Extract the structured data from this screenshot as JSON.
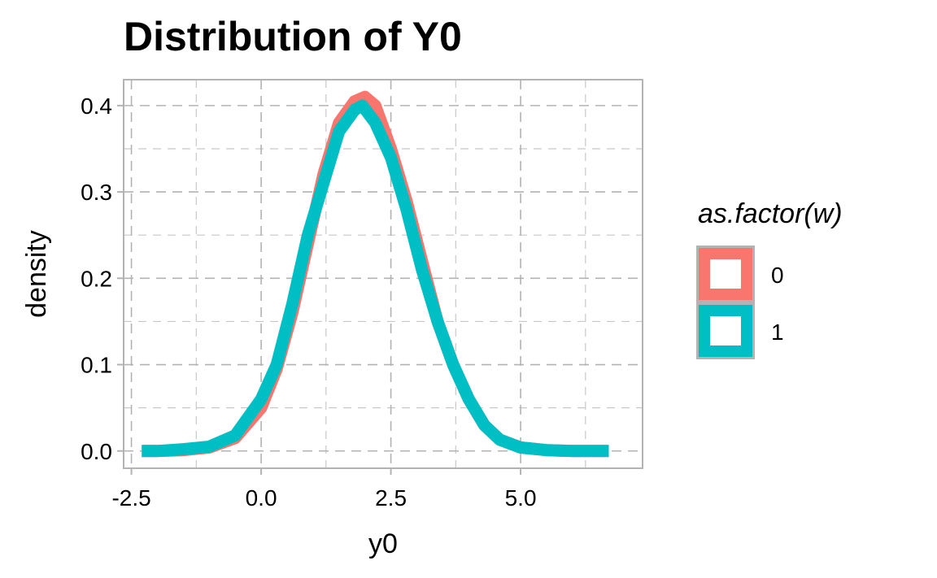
{
  "chart_data": {
    "type": "line",
    "title": "Distribution of Y0",
    "xlabel": "y0",
    "ylabel": "density",
    "xlim": [
      -2.65,
      7.35
    ],
    "ylim": [
      -0.02,
      0.43
    ],
    "x_ticks": [
      -2.5,
      0.0,
      2.5,
      5.0
    ],
    "x_tick_labels": [
      "-2.5",
      "0.0",
      "2.5",
      "5.0"
    ],
    "y_ticks": [
      0.0,
      0.1,
      0.2,
      0.3,
      0.4
    ],
    "y_tick_labels": [
      "0.0",
      "0.1",
      "0.2",
      "0.3",
      "0.4"
    ],
    "grid": true,
    "legend": {
      "title": "as.factor(w)",
      "position": "right"
    },
    "series": [
      {
        "name": "0",
        "color": "#F8766D",
        "x": [
          -2.3,
          -2.0,
          -1.5,
          -1.0,
          -0.5,
          0.0,
          0.3,
          0.6,
          0.9,
          1.2,
          1.5,
          1.8,
          2.0,
          2.2,
          2.5,
          2.8,
          3.1,
          3.4,
          3.7,
          4.0,
          4.3,
          4.6,
          5.0,
          5.5,
          6.0,
          6.7
        ],
        "values": [
          0.0,
          0.0,
          0.001,
          0.004,
          0.015,
          0.05,
          0.095,
          0.16,
          0.24,
          0.32,
          0.38,
          0.405,
          0.41,
          0.4,
          0.35,
          0.29,
          0.22,
          0.15,
          0.1,
          0.06,
          0.03,
          0.013,
          0.004,
          0.001,
          0.0,
          0.0
        ]
      },
      {
        "name": "1",
        "color": "#00BFC4",
        "x": [
          -2.3,
          -2.0,
          -1.5,
          -1.0,
          -0.5,
          0.0,
          0.3,
          0.6,
          0.9,
          1.2,
          1.5,
          1.8,
          1.95,
          2.2,
          2.5,
          2.8,
          3.1,
          3.4,
          3.7,
          4.0,
          4.3,
          4.6,
          5.0,
          5.5,
          6.0,
          6.7
        ],
        "values": [
          0.0,
          0.0,
          0.002,
          0.005,
          0.018,
          0.06,
          0.1,
          0.17,
          0.25,
          0.31,
          0.37,
          0.395,
          0.4,
          0.38,
          0.34,
          0.28,
          0.21,
          0.15,
          0.1,
          0.06,
          0.03,
          0.013,
          0.004,
          0.001,
          0.0,
          0.0
        ]
      }
    ]
  }
}
